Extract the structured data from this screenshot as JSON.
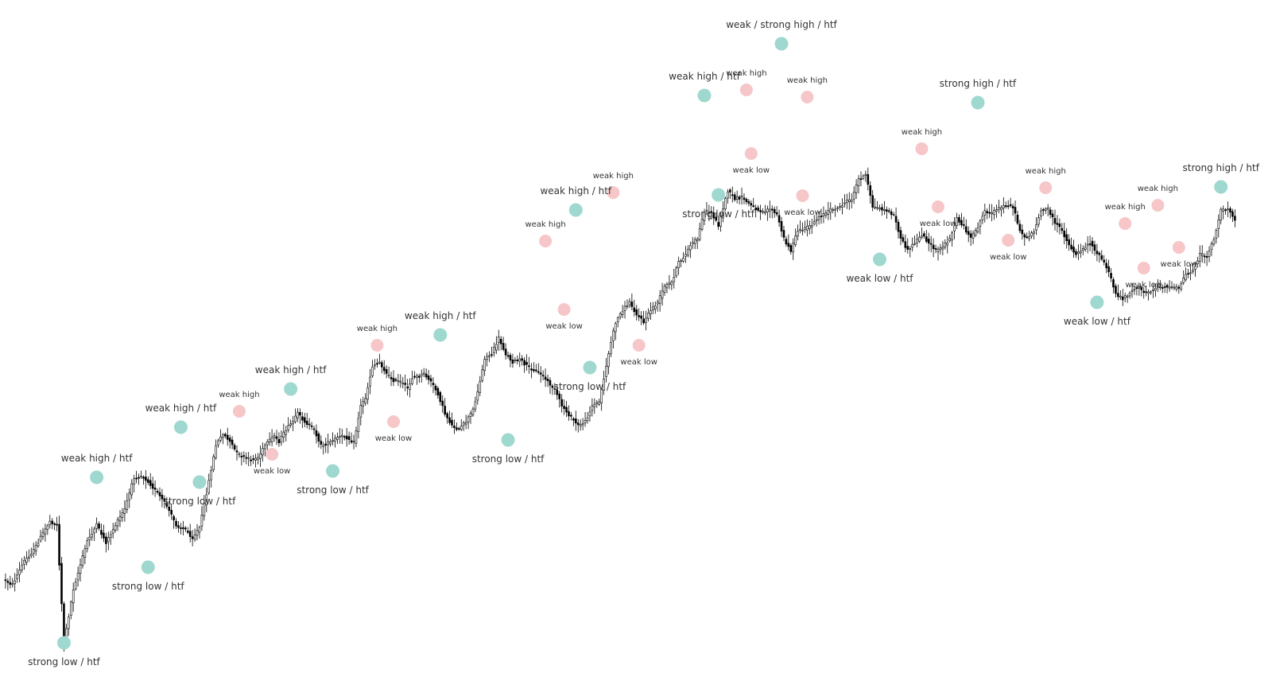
{
  "chart_data": {
    "type": "candlestick",
    "title": "",
    "xlabel": "",
    "ylabel": "",
    "grid": false,
    "ylim": [
      0,
      856
    ],
    "colors": {
      "bull_body": "#ffffff",
      "bear_body": "#000000",
      "wick": "#000000",
      "htf_marker": "#9fd8cf",
      "minor_marker": "#f6c6c8",
      "label_text": "#333333"
    },
    "anchors": [
      [
        0,
        728
      ],
      [
        4,
        735
      ],
      [
        9,
        705
      ],
      [
        13,
        692
      ],
      [
        17,
        670
      ],
      [
        20,
        655
      ],
      [
        23,
        660
      ],
      [
        26,
        808
      ],
      [
        30,
        740
      ],
      [
        36,
        680
      ],
      [
        40,
        660
      ],
      [
        44,
        682
      ],
      [
        48,
        660
      ],
      [
        52,
        640
      ],
      [
        56,
        600
      ],
      [
        59,
        598
      ],
      [
        62,
        605
      ],
      [
        66,
        620
      ],
      [
        70,
        636
      ],
      [
        74,
        660
      ],
      [
        78,
        666
      ],
      [
        81,
        676
      ],
      [
        84,
        663
      ],
      [
        87,
        620
      ],
      [
        91,
        560
      ],
      [
        94,
        545
      ],
      [
        97,
        555
      ],
      [
        100,
        570
      ],
      [
        103,
        575
      ],
      [
        106,
        578
      ],
      [
        109,
        575
      ],
      [
        112,
        560
      ],
      [
        116,
        548
      ],
      [
        118,
        555
      ],
      [
        121,
        540
      ],
      [
        124,
        530
      ],
      [
        126,
        520
      ],
      [
        129,
        530
      ],
      [
        133,
        540
      ],
      [
        136,
        560
      ],
      [
        140,
        556
      ],
      [
        143,
        550
      ],
      [
        146,
        548
      ],
      [
        150,
        556
      ],
      [
        153,
        510
      ],
      [
        155,
        500
      ],
      [
        158,
        460
      ],
      [
        161,
        455
      ],
      [
        164,
        470
      ],
      [
        167,
        478
      ],
      [
        170,
        480
      ],
      [
        173,
        488
      ],
      [
        175,
        475
      ],
      [
        178,
        473
      ],
      [
        180,
        470
      ],
      [
        183,
        480
      ],
      [
        186,
        495
      ],
      [
        189,
        520
      ],
      [
        192,
        535
      ],
      [
        195,
        540
      ],
      [
        198,
        530
      ],
      [
        201,
        515
      ],
      [
        204,
        480
      ],
      [
        206,
        450
      ],
      [
        209,
        445
      ],
      [
        212,
        425
      ],
      [
        215,
        445
      ],
      [
        218,
        455
      ],
      [
        221,
        452
      ],
      [
        224,
        460
      ],
      [
        227,
        465
      ],
      [
        230,
        470
      ],
      [
        233,
        480
      ],
      [
        236,
        490
      ],
      [
        239,
        510
      ],
      [
        243,
        525
      ],
      [
        246,
        535
      ],
      [
        249,
        530
      ],
      [
        252,
        510
      ],
      [
        255,
        505
      ],
      [
        257,
        475
      ],
      [
        260,
        430
      ],
      [
        262,
        405
      ],
      [
        265,
        390
      ],
      [
        268,
        380
      ],
      [
        271,
        395
      ],
      [
        274,
        405
      ],
      [
        277,
        390
      ],
      [
        280,
        380
      ],
      [
        283,
        360
      ],
      [
        286,
        355
      ],
      [
        289,
        330
      ],
      [
        292,
        320
      ],
      [
        294,
        308
      ],
      [
        297,
        300
      ],
      [
        300,
        265
      ],
      [
        303,
        268
      ],
      [
        306,
        283
      ],
      [
        310,
        240
      ],
      [
        313,
        250
      ],
      [
        316,
        248
      ],
      [
        319,
        256
      ],
      [
        322,
        262
      ],
      [
        325,
        266
      ],
      [
        328,
        262
      ],
      [
        331,
        270
      ],
      [
        334,
        300
      ],
      [
        337,
        315
      ],
      [
        340,
        290
      ],
      [
        343,
        288
      ],
      [
        346,
        282
      ],
      [
        349,
        272
      ],
      [
        352,
        268
      ],
      [
        355,
        262
      ],
      [
        357,
        262
      ],
      [
        360,
        255
      ],
      [
        363,
        250
      ],
      [
        366,
        225
      ],
      [
        369,
        220
      ],
      [
        372,
        260
      ],
      [
        375,
        262
      ],
      [
        378,
        265
      ],
      [
        381,
        270
      ],
      [
        384,
        300
      ],
      [
        387,
        315
      ],
      [
        390,
        305
      ],
      [
        393,
        295
      ],
      [
        396,
        305
      ],
      [
        399,
        315
      ],
      [
        402,
        310
      ],
      [
        405,
        300
      ],
      [
        408,
        275
      ],
      [
        411,
        285
      ],
      [
        414,
        300
      ],
      [
        417,
        285
      ],
      [
        420,
        265
      ],
      [
        423,
        268
      ],
      [
        426,
        262
      ],
      [
        429,
        258
      ],
      [
        432,
        260
      ],
      [
        435,
        290
      ],
      [
        438,
        300
      ],
      [
        441,
        290
      ],
      [
        444,
        265
      ],
      [
        447,
        262
      ],
      [
        450,
        280
      ],
      [
        453,
        290
      ],
      [
        456,
        308
      ],
      [
        459,
        320
      ],
      [
        462,
        312
      ],
      [
        465,
        305
      ],
      [
        468,
        318
      ],
      [
        471,
        330
      ],
      [
        474,
        350
      ],
      [
        476,
        370
      ],
      [
        479,
        375
      ],
      [
        482,
        368
      ],
      [
        485,
        360
      ],
      [
        488,
        368
      ],
      [
        491,
        365
      ],
      [
        494,
        360
      ],
      [
        497,
        360
      ],
      [
        500,
        362
      ],
      [
        503,
        362
      ],
      [
        506,
        345
      ],
      [
        509,
        340
      ],
      [
        512,
        320
      ],
      [
        515,
        322
      ],
      [
        518,
        300
      ],
      [
        521,
        265
      ],
      [
        524,
        262
      ],
      [
        527,
        275
      ]
    ],
    "annotations": [
      {
        "x": 26,
        "y": 808,
        "kind": "htf",
        "label": "strong low / htf",
        "pos": "below"
      },
      {
        "x": 40,
        "y": 600,
        "kind": "htf",
        "label": "weak high / htf",
        "pos": "above"
      },
      {
        "x": 62,
        "y": 713,
        "kind": "htf",
        "label": "strong low / htf",
        "pos": "below"
      },
      {
        "x": 76,
        "y": 537,
        "kind": "htf",
        "label": "weak high / htf",
        "pos": "above"
      },
      {
        "x": 84,
        "y": 606,
        "kind": "htf",
        "label": "strong low / htf",
        "pos": "below"
      },
      {
        "x": 101,
        "y": 517,
        "kind": "minor",
        "label": "weak high",
        "pos": "above"
      },
      {
        "x": 115,
        "y": 571,
        "kind": "minor",
        "label": "weak low",
        "pos": "below"
      },
      {
        "x": 123,
        "y": 489,
        "kind": "htf",
        "label": "weak high / htf",
        "pos": "above"
      },
      {
        "x": 141,
        "y": 592,
        "kind": "htf",
        "label": "strong low / htf",
        "pos": "below"
      },
      {
        "x": 160,
        "y": 434,
        "kind": "minor",
        "label": "weak high",
        "pos": "above"
      },
      {
        "x": 167,
        "y": 530,
        "kind": "minor",
        "label": "weak low",
        "pos": "below"
      },
      {
        "x": 187,
        "y": 421,
        "kind": "htf",
        "label": "weak high / htf",
        "pos": "above"
      },
      {
        "x": 216,
        "y": 553,
        "kind": "htf",
        "label": "strong low / htf",
        "pos": "below"
      },
      {
        "x": 232,
        "y": 303,
        "kind": "minor",
        "label": "weak high",
        "pos": "above"
      },
      {
        "x": 240,
        "y": 389,
        "kind": "minor",
        "label": "weak low",
        "pos": "below"
      },
      {
        "x": 245,
        "y": 264,
        "kind": "htf",
        "label": "weak high / htf",
        "pos": "above"
      },
      {
        "x": 261,
        "y": 242,
        "kind": "minor",
        "label": "weak high",
        "pos": "above"
      },
      {
        "x": 251,
        "y": 462,
        "kind": "htf",
        "label": "strong low / htf",
        "pos": "below"
      },
      {
        "x": 272,
        "y": 434,
        "kind": "minor",
        "label": "weak low",
        "pos": "below"
      },
      {
        "x": 300,
        "y": 120,
        "kind": "htf",
        "label": "weak high / htf",
        "pos": "above"
      },
      {
        "x": 318,
        "y": 113,
        "kind": "minor",
        "label": "weak high",
        "pos": "above"
      },
      {
        "x": 306,
        "y": 245,
        "kind": "htf",
        "label": "strong low / htf",
        "pos": "below"
      },
      {
        "x": 320,
        "y": 193,
        "kind": "minor",
        "label": "weak low",
        "pos": "below"
      },
      {
        "x": 333,
        "y": 55,
        "kind": "htf",
        "label": "weak / strong high / htf",
        "pos": "above"
      },
      {
        "x": 344,
        "y": 122,
        "kind": "minor",
        "label": "weak high",
        "pos": "above"
      },
      {
        "x": 342,
        "y": 246,
        "kind": "minor",
        "label": "weak low",
        "pos": "below"
      },
      {
        "x": 375,
        "y": 326,
        "kind": "htf",
        "label": "weak low / htf",
        "pos": "below"
      },
      {
        "x": 393,
        "y": 187,
        "kind": "minor",
        "label": "weak high",
        "pos": "above"
      },
      {
        "x": 400,
        "y": 260,
        "kind": "minor",
        "label": "weak low",
        "pos": "below"
      },
      {
        "x": 417,
        "y": 129,
        "kind": "htf",
        "label": "strong high / htf",
        "pos": "above"
      },
      {
        "x": 430,
        "y": 302,
        "kind": "minor",
        "label": "weak low",
        "pos": "below"
      },
      {
        "x": 446,
        "y": 236,
        "kind": "minor",
        "label": "weak high",
        "pos": "above"
      },
      {
        "x": 468,
        "y": 380,
        "kind": "htf",
        "label": "weak low / htf",
        "pos": "below"
      },
      {
        "x": 480,
        "y": 281,
        "kind": "minor",
        "label": "weak high",
        "pos": "above"
      },
      {
        "x": 488,
        "y": 337,
        "kind": "minor",
        "label": "weak low",
        "pos": "below"
      },
      {
        "x": 494,
        "y": 258,
        "kind": "minor",
        "label": "weak high",
        "pos": "above"
      },
      {
        "x": 503,
        "y": 311,
        "kind": "minor",
        "label": "weak low",
        "pos": "below"
      },
      {
        "x": 521,
        "y": 235,
        "kind": "htf",
        "label": "strong high / htf",
        "pos": "above"
      }
    ]
  }
}
